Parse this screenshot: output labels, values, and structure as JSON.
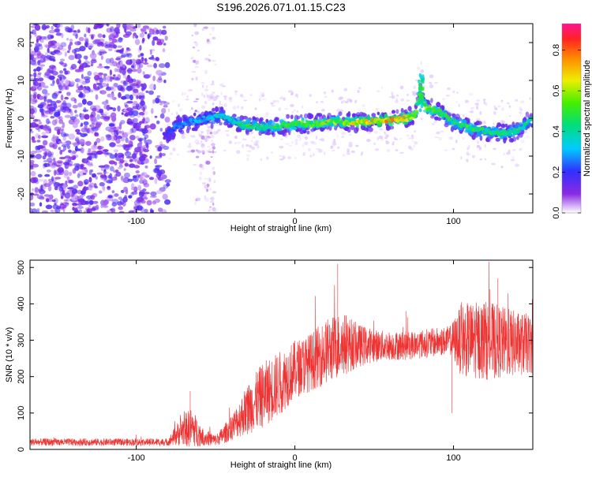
{
  "title": "S196.2026.071.01.15.C23",
  "chart_data": [
    {
      "type": "heatmap",
      "xlabel": "Height of straight line (km)",
      "ylabel": "Frequency (Hz)",
      "xlim": [
        -167,
        150
      ],
      "ylim": [
        -25,
        25
      ],
      "xticks": [
        -100,
        0,
        100
      ],
      "yticks": [
        -20,
        -10,
        0,
        10,
        20
      ],
      "colorbar": {
        "label": "Normalized spectral amplitude",
        "range": [
          0,
          0.93
        ],
        "ticks": [
          0.0,
          0.2,
          0.4,
          0.6,
          0.8
        ]
      },
      "noise_region": {
        "x_start": -167,
        "x_end": -80,
        "freq_range": [
          -25,
          25
        ],
        "amplitude": [
          0.05,
          0.18
        ]
      },
      "scatter_band": {
        "x_start": -65,
        "x_end": -50,
        "freq_range": [
          -25,
          25
        ],
        "amplitude": [
          0.02,
          0.08
        ]
      },
      "ridge": [
        {
          "x": -82,
          "f": -5,
          "a": 0.18
        },
        {
          "x": -75,
          "f": -2,
          "a": 0.25
        },
        {
          "x": -65,
          "f": -1,
          "a": 0.3
        },
        {
          "x": -55,
          "f": 0,
          "a": 0.35
        },
        {
          "x": -45,
          "f": 0.5,
          "a": 0.4
        },
        {
          "x": -38,
          "f": -1,
          "a": 0.4
        },
        {
          "x": -30,
          "f": -2,
          "a": 0.5
        },
        {
          "x": -20,
          "f": -2.5,
          "a": 0.45
        },
        {
          "x": -10,
          "f": -2,
          "a": 0.5
        },
        {
          "x": 0,
          "f": -1.5,
          "a": 0.55
        },
        {
          "x": 10,
          "f": -1.5,
          "a": 0.55
        },
        {
          "x": 20,
          "f": -1,
          "a": 0.55
        },
        {
          "x": 30,
          "f": -1,
          "a": 0.6
        },
        {
          "x": 40,
          "f": -1,
          "a": 0.7
        },
        {
          "x": 50,
          "f": -0.8,
          "a": 0.7
        },
        {
          "x": 60,
          "f": -0.5,
          "a": 0.75
        },
        {
          "x": 70,
          "f": 0,
          "a": 0.7
        },
        {
          "x": 76,
          "f": 1,
          "a": 0.6
        },
        {
          "x": 79,
          "f": 8,
          "a": 0.45
        },
        {
          "x": 82,
          "f": 3,
          "a": 0.6
        },
        {
          "x": 90,
          "f": 2,
          "a": 0.5
        },
        {
          "x": 100,
          "f": -1,
          "a": 0.45
        },
        {
          "x": 110,
          "f": -2.5,
          "a": 0.5
        },
        {
          "x": 120,
          "f": -3.5,
          "a": 0.45
        },
        {
          "x": 130,
          "f": -4,
          "a": 0.5
        },
        {
          "x": 140,
          "f": -3.5,
          "a": 0.45
        },
        {
          "x": 150,
          "f": 0,
          "a": 0.4
        }
      ]
    },
    {
      "type": "line",
      "xlabel": "Height of straight line (km)",
      "ylabel": "SNR (10 * v/v)",
      "xlim": [
        -167,
        150
      ],
      "ylim": [
        0,
        520
      ],
      "xticks": [
        -100,
        0,
        100
      ],
      "yticks": [
        0,
        100,
        200,
        300,
        400,
        500
      ],
      "color": "#ee3333",
      "envelope": [
        {
          "x": -167,
          "mean": 20,
          "spread": 10
        },
        {
          "x": -80,
          "mean": 20,
          "spread": 10
        },
        {
          "x": -72,
          "mean": 50,
          "spread": 40
        },
        {
          "x": -65,
          "mean": 60,
          "spread": 55
        },
        {
          "x": -58,
          "mean": 35,
          "spread": 25
        },
        {
          "x": -50,
          "mean": 25,
          "spread": 15
        },
        {
          "x": -45,
          "mean": 40,
          "spread": 25
        },
        {
          "x": -38,
          "mean": 70,
          "spread": 40
        },
        {
          "x": -30,
          "mean": 110,
          "spread": 70
        },
        {
          "x": -20,
          "mean": 150,
          "spread": 90
        },
        {
          "x": -10,
          "mean": 180,
          "spread": 90
        },
        {
          "x": 0,
          "mean": 220,
          "spread": 80
        },
        {
          "x": 10,
          "mean": 240,
          "spread": 80
        },
        {
          "x": 20,
          "mean": 270,
          "spread": 90
        },
        {
          "x": 30,
          "mean": 290,
          "spread": 90
        },
        {
          "x": 40,
          "mean": 285,
          "spread": 60
        },
        {
          "x": 50,
          "mean": 285,
          "spread": 45
        },
        {
          "x": 60,
          "mean": 285,
          "spread": 40
        },
        {
          "x": 70,
          "mean": 285,
          "spread": 40
        },
        {
          "x": 80,
          "mean": 290,
          "spread": 40
        },
        {
          "x": 90,
          "mean": 295,
          "spread": 40
        },
        {
          "x": 98,
          "mean": 300,
          "spread": 40
        },
        {
          "x": 105,
          "mean": 300,
          "spread": 100
        },
        {
          "x": 120,
          "mean": 300,
          "spread": 110
        },
        {
          "x": 140,
          "mean": 290,
          "spread": 90
        },
        {
          "x": 150,
          "mean": 290,
          "spread": 80
        }
      ],
      "spikes": [
        {
          "x": -66,
          "y": 160
        },
        {
          "x": 27,
          "y": 510
        },
        {
          "x": 70,
          "y": 380
        },
        {
          "x": 98,
          "y": 340
        },
        {
          "x": 99,
          "y": 100
        },
        {
          "x": 128,
          "y": 470
        }
      ]
    }
  ]
}
